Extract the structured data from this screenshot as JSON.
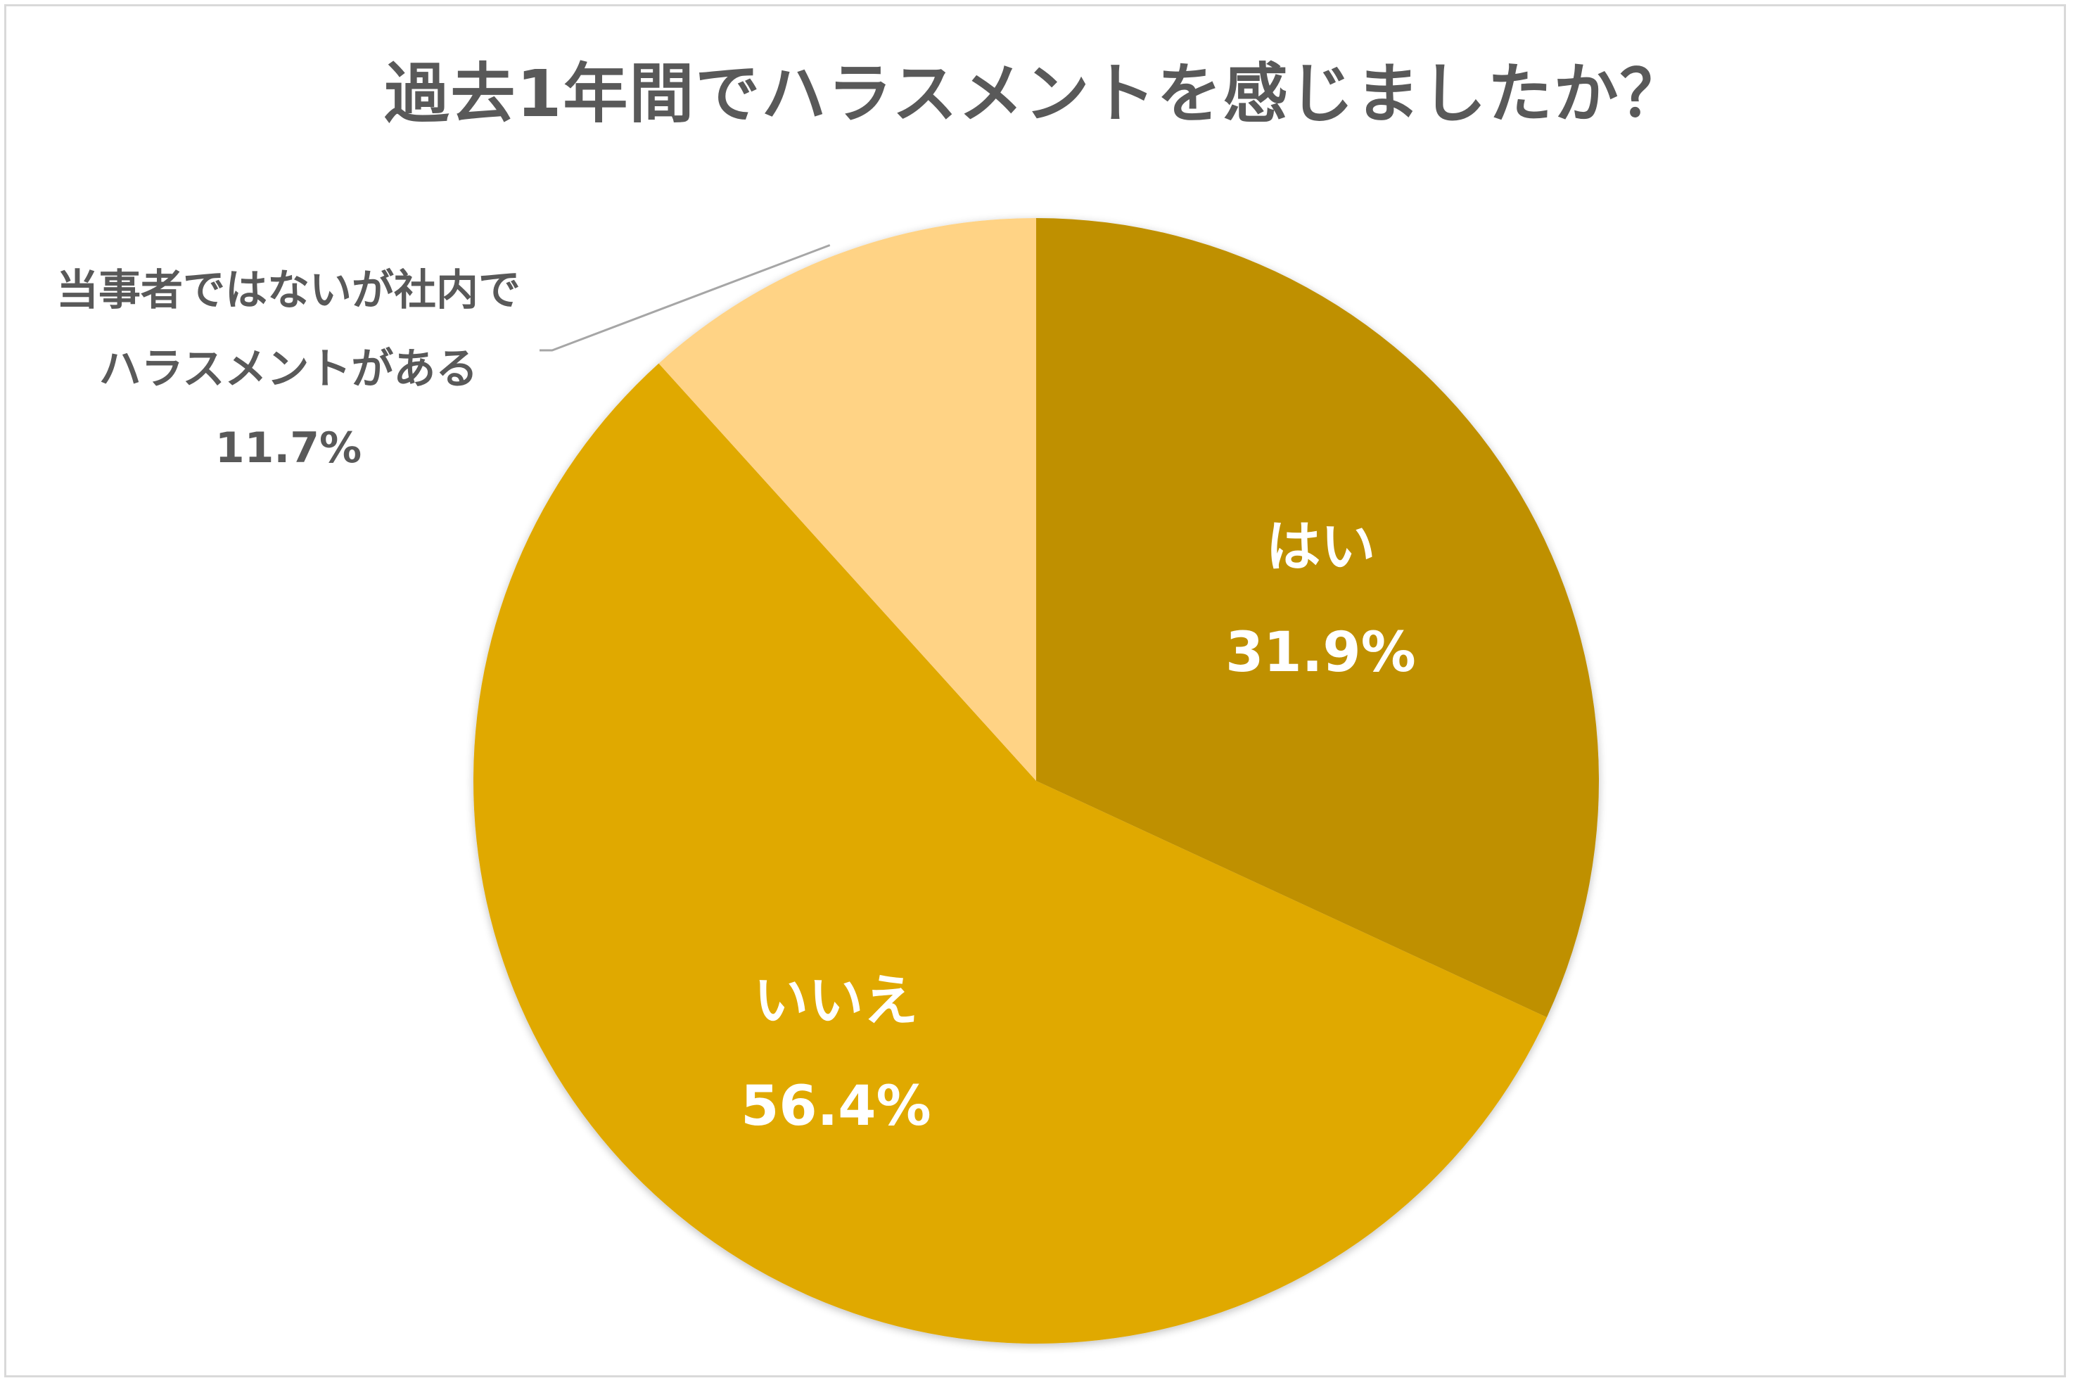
{
  "chart_data": {
    "type": "pie",
    "title": "過去1年間でハラスメントを感じましたか？",
    "slices": [
      {
        "label": "はい",
        "value": 31.9,
        "display": "31.9%",
        "color": "#bf9000",
        "label_color": "#ffffff"
      },
      {
        "label": "いいえ",
        "value": 56.4,
        "display": "56.4%",
        "color": "#e0a900",
        "label_color": "#ffffff"
      },
      {
        "label_lines": [
          "当事者ではないが社内で",
          "ハラスメントがある"
        ],
        "value": 11.7,
        "display": "11.7%",
        "color": "#ffd385",
        "label_color": "#595959"
      }
    ],
    "start_angle": "12 o'clock",
    "direction": "clockwise"
  }
}
